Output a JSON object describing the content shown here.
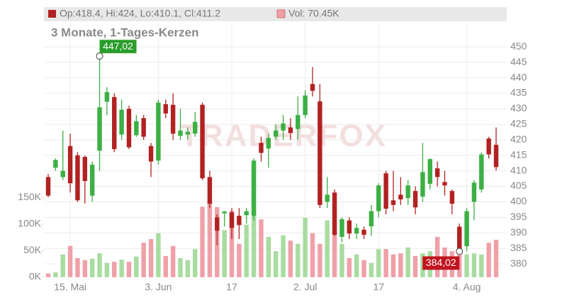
{
  "chart_data": {
    "type": "candlestick",
    "title": "3 Monate, 1-Tages-Kerzen",
    "watermark": "TRADERFOX",
    "header": {
      "ohlc": "Op:418.4, Hi:424, Lo:410.1, Cl:411.2",
      "volume": "Vol: 70.45K"
    },
    "categories": [
      null,
      null,
      null,
      "15. Mai",
      null,
      null,
      null,
      null,
      null,
      null,
      null,
      null,
      null,
      null,
      null,
      "3. Jun",
      null,
      null,
      null,
      null,
      null,
      null,
      null,
      null,
      null,
      "17",
      null,
      null,
      null,
      null,
      null,
      null,
      null,
      null,
      null,
      "2. Jul",
      null,
      null,
      null,
      null,
      null,
      null,
      null,
      null,
      null,
      "17",
      null,
      null,
      null,
      null,
      null,
      null,
      null,
      null,
      null,
      null,
      null,
      "4. Aug",
      null,
      null,
      null,
      null
    ],
    "open": [
      408,
      411,
      408,
      418,
      415,
      414.5,
      402,
      416.5,
      432.3,
      433.8,
      421.7,
      430,
      421.5,
      427,
      418,
      413.3,
      431.5,
      431.3,
      421.3,
      421.7,
      422,
      431.3,
      408,
      395,
      396.3,
      396.6,
      395.5,
      395.7,
      395.5,
      419,
      417.2,
      421,
      423,
      424,
      423.5,
      428,
      438,
      432.4,
      400,
      403,
      388.7,
      394,
      389.8,
      391,
      392.1,
      397,
      409.2,
      400.5,
      402.3,
      401.2,
      403.5,
      401.7,
      405.8,
      410.8,
      406.4,
      403.5,
      392,
      385.7,
      400,
      404,
      420.4,
      418.4
    ],
    "high": [
      409,
      414,
      423,
      422,
      416,
      415,
      413,
      447.02,
      437,
      435,
      433,
      431,
      428,
      428,
      419,
      433,
      433,
      435,
      430,
      424,
      429,
      432,
      410,
      396,
      397,
      398,
      398,
      398,
      414,
      421,
      422,
      425,
      428,
      427,
      434,
      436,
      443.5,
      438,
      408,
      404,
      395,
      395,
      393,
      392,
      399,
      406,
      410,
      410,
      408,
      407,
      405,
      419,
      414,
      413,
      410,
      404,
      393,
      398,
      407,
      416,
      421,
      424
    ],
    "low": [
      401.5,
      410,
      407,
      403,
      400,
      399.5,
      400,
      410,
      428,
      416,
      420,
      417,
      421,
      420,
      408,
      412,
      427,
      420,
      420,
      420,
      421,
      407,
      398,
      386,
      392,
      388,
      388,
      393,
      394,
      413,
      411,
      420,
      420,
      420,
      420,
      427,
      434,
      398,
      398,
      389,
      387,
      388,
      388,
      388,
      389,
      395,
      396,
      397,
      399,
      399,
      396,
      400,
      404,
      405,
      402,
      396,
      384.02,
      384,
      394,
      403,
      414,
      410.1
    ],
    "close": [
      402,
      413.5,
      410,
      406,
      400.5,
      406.7,
      412,
      430.5,
      435.4,
      417,
      429.7,
      417.6,
      426,
      421,
      413,
      432,
      428.5,
      422,
      423,
      422.6,
      425.8,
      407.6,
      399.4,
      390.7,
      396.9,
      391.6,
      392.5,
      397,
      413.3,
      415.8,
      420.6,
      423,
      425.3,
      422.2,
      428,
      434.3,
      435.8,
      399,
      402.3,
      389.4,
      394.4,
      389.8,
      391.6,
      389.4,
      397,
      405.3,
      397.8,
      399,
      400.8,
      405.3,
      398.2,
      409.6,
      413.8,
      408,
      405.3,
      399.4,
      384.8,
      397,
      406.2,
      415.3,
      415.3,
      411.2
    ],
    "volume": [
      7000,
      9000,
      43000,
      59000,
      36000,
      32000,
      35000,
      45000,
      27000,
      29000,
      33000,
      29000,
      39000,
      65000,
      72000,
      83000,
      40000,
      59000,
      36000,
      32000,
      53000,
      133000,
      145000,
      132000,
      89000,
      125000,
      63000,
      99000,
      123000,
      109000,
      76000,
      49000,
      79000,
      69000,
      63000,
      112000,
      83000,
      63000,
      107000,
      85000,
      63000,
      36000,
      43000,
      32000,
      27000,
      53000,
      53000,
      43000,
      45000,
      56000,
      40000,
      45000,
      49000,
      76000,
      56000,
      49000,
      43000,
      43000,
      45000,
      43000,
      65000,
      70450
    ],
    "ylim": [
      375.7,
      457.8
    ],
    "yticks": [
      380,
      385,
      390,
      395,
      400,
      405,
      410,
      415,
      420,
      425,
      430,
      435,
      440,
      445,
      450
    ],
    "y2lim": [
      0,
      480000
    ],
    "y2ticks": [
      {
        "value": 0,
        "label": "0K"
      },
      {
        "value": 50000,
        "label": "50K"
      },
      {
        "value": 100000,
        "label": "100K"
      },
      {
        "value": 150000,
        "label": "150K"
      }
    ],
    "colors": {
      "up": "#3cb043",
      "down": "#b22222",
      "volume_up": "#a8dca0",
      "volume_down": "#f0a0a8"
    },
    "grid": true,
    "high_label": {
      "value": 447.02,
      "label": "447,02"
    },
    "low_label": {
      "value": 384.02,
      "label": "384,02"
    }
  }
}
